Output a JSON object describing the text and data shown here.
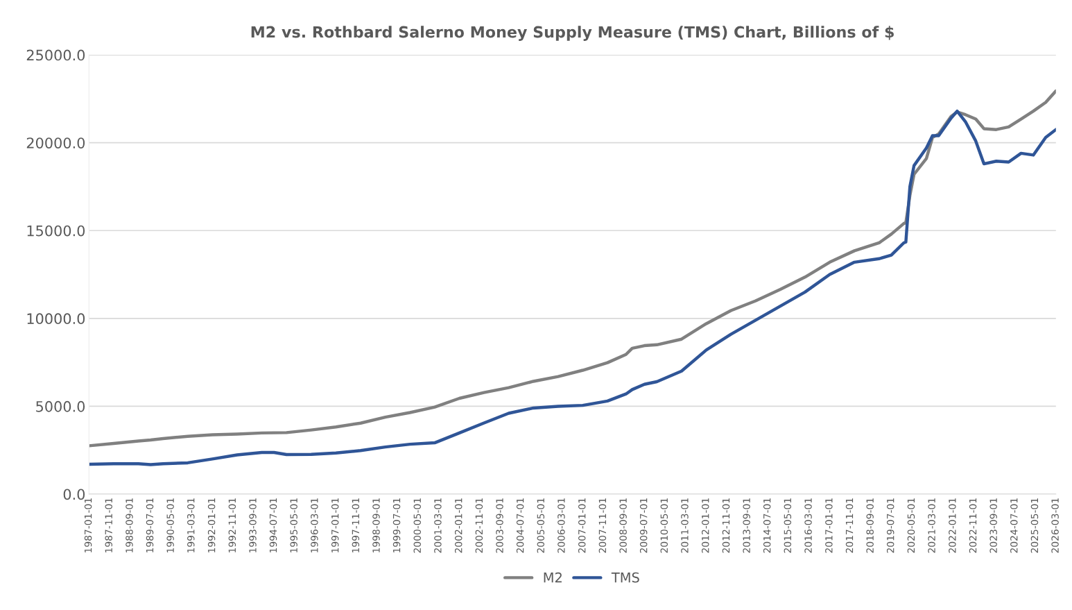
{
  "chart_data": {
    "type": "line",
    "title": "M2 vs. Rothbard Salerno Money Supply Measure (TMS) Chart, Billions of $",
    "x": [
      "1987-01-01",
      "1988-01-01",
      "1989-01-01",
      "1989-07-01",
      "1990-01-01",
      "1991-01-01",
      "1992-01-01",
      "1993-01-01",
      "1994-01-01",
      "1994-07-01",
      "1995-01-01",
      "1996-01-01",
      "1997-01-01",
      "1998-01-01",
      "1999-01-01",
      "2000-01-01",
      "2001-01-01",
      "2002-01-01",
      "2003-01-01",
      "2004-01-01",
      "2005-01-01",
      "2006-01-01",
      "2007-01-01",
      "2008-01-01",
      "2008-10-01",
      "2009-01-01",
      "2009-07-01",
      "2010-01-01",
      "2011-01-01",
      "2012-01-01",
      "2013-01-01",
      "2014-01-01",
      "2015-01-01",
      "2016-01-01",
      "2017-01-01",
      "2018-01-01",
      "2019-01-01",
      "2019-07-01",
      "2020-01-01",
      "2020-02-01",
      "2020-04-01",
      "2020-06-01",
      "2020-12-01",
      "2021-03-01",
      "2021-06-01",
      "2021-12-01",
      "2022-03-01",
      "2022-07-01",
      "2022-12-01",
      "2023-04-01",
      "2023-10-01",
      "2024-04-01",
      "2024-10-01",
      "2025-04-01",
      "2025-10-01",
      "2026-03-01"
    ],
    "series": [
      {
        "name": "M2",
        "color": "#808080",
        "values": [
          2750,
          2880,
          3020,
          3080,
          3160,
          3290,
          3380,
          3420,
          3480,
          3490,
          3500,
          3650,
          3820,
          4040,
          4380,
          4640,
          4950,
          5450,
          5780,
          6060,
          6420,
          6690,
          7050,
          7480,
          7950,
          8300,
          8450,
          8500,
          8820,
          9700,
          10450,
          11000,
          11650,
          12350,
          13200,
          13850,
          14300,
          14800,
          15400,
          15450,
          17000,
          18200,
          19100,
          20300,
          20500,
          21500,
          21750,
          21600,
          21350,
          20800,
          20750,
          20900,
          21350,
          21800,
          22300,
          22950
        ]
      },
      {
        "name": "TMS",
        "color": "#2f5597",
        "values": [
          1700,
          1730,
          1730,
          1680,
          1730,
          1780,
          2000,
          2230,
          2370,
          2370,
          2250,
          2260,
          2340,
          2480,
          2680,
          2840,
          2920,
          3480,
          4050,
          4600,
          4900,
          5000,
          5050,
          5300,
          5700,
          5950,
          6250,
          6400,
          7000,
          8200,
          9100,
          9900,
          10700,
          11500,
          12500,
          13200,
          13400,
          13600,
          14300,
          14350,
          17500,
          18700,
          19700,
          20400,
          20400,
          21400,
          21800,
          21200,
          20100,
          18800,
          18950,
          18900,
          19400,
          19300,
          20300,
          20750
        ]
      }
    ],
    "xlim": [
      "1987-01-01",
      "2026-03-01"
    ],
    "xticks": [
      "1987-01-01",
      "1987-11-01",
      "1988-09-01",
      "1989-07-01",
      "1990-05-01",
      "1991-03-01",
      "1992-01-01",
      "1992-11-01",
      "1993-09-01",
      "1994-07-01",
      "1995-05-01",
      "1996-03-01",
      "1997-01-01",
      "1997-11-01",
      "1998-09-01",
      "1999-07-01",
      "2000-05-01",
      "2001-03-01",
      "2002-01-01",
      "2002-11-01",
      "2003-09-01",
      "2004-07-01",
      "2005-05-01",
      "2006-03-01",
      "2007-01-01",
      "2007-11-01",
      "2008-09-01",
      "2009-07-01",
      "2010-05-01",
      "2011-03-01",
      "2012-01-01",
      "2012-11-01",
      "2013-09-01",
      "2014-07-01",
      "2015-05-01",
      "2016-03-01",
      "2017-01-01",
      "2017-11-01",
      "2018-09-01",
      "2019-07-01",
      "2020-05-01",
      "2021-03-01",
      "2022-01-01",
      "2022-11-01",
      "2023-09-01",
      "2024-07-01",
      "2025-05-01",
      "2026-03-01"
    ],
    "ylim": [
      0,
      25000
    ],
    "yticks": [
      {
        "value": 0,
        "label": "0.0"
      },
      {
        "value": 5000,
        "label": "5000.0"
      },
      {
        "value": 10000,
        "label": "10000.0"
      },
      {
        "value": 15000,
        "label": "15000.0"
      },
      {
        "value": 20000,
        "label": "20000.0"
      },
      {
        "value": 25000,
        "label": "25000.0"
      }
    ],
    "grid": "y",
    "legend": "bottom",
    "marker": "none",
    "line_style": "solid"
  }
}
